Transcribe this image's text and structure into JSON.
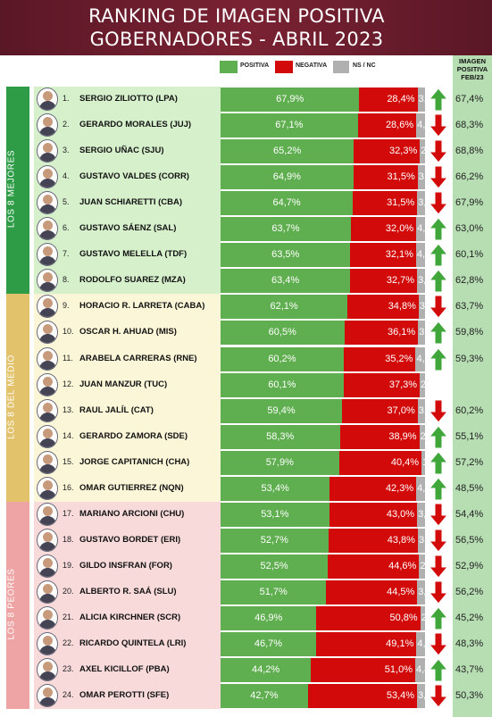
{
  "title": [
    "RANKING DE IMAGEN POSITIVA",
    "GOBERNADORES - ABRIL 2023"
  ],
  "legend": [
    {
      "label": "POSITIVA",
      "color": "#5fae4f"
    },
    {
      "label": "NEGATIVA",
      "color": "#d20a0a"
    },
    {
      "label": "NS / NC",
      "color": "#b0b0b0"
    }
  ],
  "prev_header": [
    "IMAGEN",
    "POSITIVA",
    "FEB/23"
  ],
  "groups": [
    {
      "label": "LOS 8 MEJORES",
      "color": "#2e9c47",
      "row_bg": "#d6f0cc",
      "rows": [
        1,
        8
      ]
    },
    {
      "label": "LOS 8 DEL MEDIO",
      "color": "#e2c26a",
      "row_bg": "#fbf6d8",
      "rows": [
        9,
        16
      ]
    },
    {
      "label": "LOS 8 PEORES",
      "color": "#eea4a4",
      "row_bg": "#f8dada",
      "rows": [
        17,
        24
      ]
    }
  ],
  "chart_data": {
    "type": "bar",
    "stacked": true,
    "orientation": "horizontal",
    "categories": [
      "SERGIO ZILIOTTO (LPA)",
      "GERARDO MORALES (JUJ)",
      "SERGIO UÑAC (SJU)",
      "GUSTAVO VALDES (CORR)",
      "JUAN SCHIARETTI (CBA)",
      "GUSTAVO SÁENZ (SAL)",
      "GUSTAVO MELELLA (TDF)",
      "RODOLFO SUAREZ (MZA)",
      "HORACIO R. LARRETA (CABA)",
      "OSCAR H. AHUAD (MIS)",
      "ARABELA CARRERAS (RNE)",
      "JUAN MANZUR (TUC)",
      "RAUL JALÍL (CAT)",
      "GERARDO ZAMORA (SDE)",
      "JORGE CAPITANICH (CHA)",
      "OMAR GUTIERREZ (NQN)",
      "MARIANO ARCIONI (CHU)",
      "GUSTAVO BORDET (ERI)",
      "GILDO INSFRAN (FOR)",
      "ALBERTO R. SAÁ (SLU)",
      "ALICIA KIRCHNER (SCR)",
      "RICARDO QUINTELA (LRI)",
      "AXEL KICILLOF (PBA)",
      "OMAR PEROTTI (SFE)"
    ],
    "ranks": [
      "1.",
      "2.",
      "3.",
      "4.",
      "5.",
      "6.",
      "7.",
      "8.",
      "9.",
      "10.",
      "11.",
      "12.",
      "13.",
      "14.",
      "15.",
      "16.",
      "17.",
      "18.",
      "19.",
      "20.",
      "21.",
      "22.",
      "23.",
      "24."
    ],
    "series": [
      {
        "name": "POSITIVA",
        "values": [
          67.9,
          67.1,
          65.2,
          64.9,
          64.7,
          63.7,
          63.5,
          63.4,
          62.1,
          60.5,
          60.2,
          60.1,
          59.4,
          58.3,
          57.9,
          53.4,
          53.1,
          52.7,
          52.5,
          51.7,
          46.9,
          46.7,
          44.2,
          42.7
        ],
        "labels": [
          "67,9%",
          "67,1%",
          "65,2%",
          "64,9%",
          "64,7%",
          "63,7%",
          "63,5%",
          "63,4%",
          "62,1%",
          "60,5%",
          "60,2%",
          "60,1%",
          "59,4%",
          "58,3%",
          "57,9%",
          "53,4%",
          "53,1%",
          "52,7%",
          "52,5%",
          "51,7%",
          "46,9%",
          "46,7%",
          "44,2%",
          "42,7%"
        ]
      },
      {
        "name": "NEGATIVA",
        "values": [
          28.4,
          28.6,
          32.3,
          31.5,
          31.5,
          32.0,
          32.1,
          32.7,
          34.8,
          36.1,
          35.2,
          37.3,
          37.0,
          38.9,
          40.4,
          42.3,
          43.0,
          43.8,
          44.6,
          44.5,
          50.8,
          49.1,
          51.0,
          53.4
        ],
        "labels": [
          "28,4%",
          "28,6%",
          "32,3%",
          "31,5%",
          "31,5%",
          "32,0%",
          "32,1%",
          "32,7%",
          "34,8%",
          "36,1%",
          "35,2%",
          "37,3%",
          "37,0%",
          "38,9%",
          "40,4%",
          "42,3%",
          "43,0%",
          "43,8%",
          "44,6%",
          "44,5%",
          "50,8%",
          "49,1%",
          "51,0%",
          "53,4%"
        ]
      },
      {
        "name": "NS / NC",
        "values": [
          3.7,
          4.3,
          2.5,
          3.6,
          3.8,
          4.3,
          4.4,
          3.9,
          3.1,
          3.4,
          4.6,
          2.6,
          3.6,
          2.8,
          1.7,
          4.3,
          3.9,
          3.5,
          2.9,
          3.8,
          2.3,
          4.2,
          4.8,
          3.9
        ],
        "labels": [
          "3,7",
          "4,3",
          "2,5",
          "3,6",
          "3,8",
          "4,3",
          "4,4",
          "3,9",
          "3,1",
          "3,4",
          "4,6",
          "2,6",
          "3,6",
          "2,8",
          "1,7",
          "4,3",
          "3,9",
          "3,5",
          "2,9",
          "3,8",
          "2,3",
          "4,2",
          "4,8",
          "3,9"
        ]
      }
    ],
    "trend": [
      "up",
      "down",
      "down",
      "down",
      "down",
      "up",
      "up",
      "up",
      "down",
      "up",
      "up",
      "none",
      "down",
      "up",
      "up",
      "up",
      "down",
      "down",
      "down",
      "down",
      "up",
      "down",
      "up",
      "down"
    ],
    "previous": [
      "67,4%",
      "68,3%",
      "68,8%",
      "66,2%",
      "67,9%",
      "63,0%",
      "60,1%",
      "62,8%",
      "63,7%",
      "59,8%",
      "59,3%",
      "",
      "60,2%",
      "55,1%",
      "57,2%",
      "48,5%",
      "54,4%",
      "56,5%",
      "52,9%",
      "56,2%",
      "45,2%",
      "48,3%",
      "43,7%",
      "50,3%"
    ],
    "xlim": [
      0,
      100
    ]
  }
}
